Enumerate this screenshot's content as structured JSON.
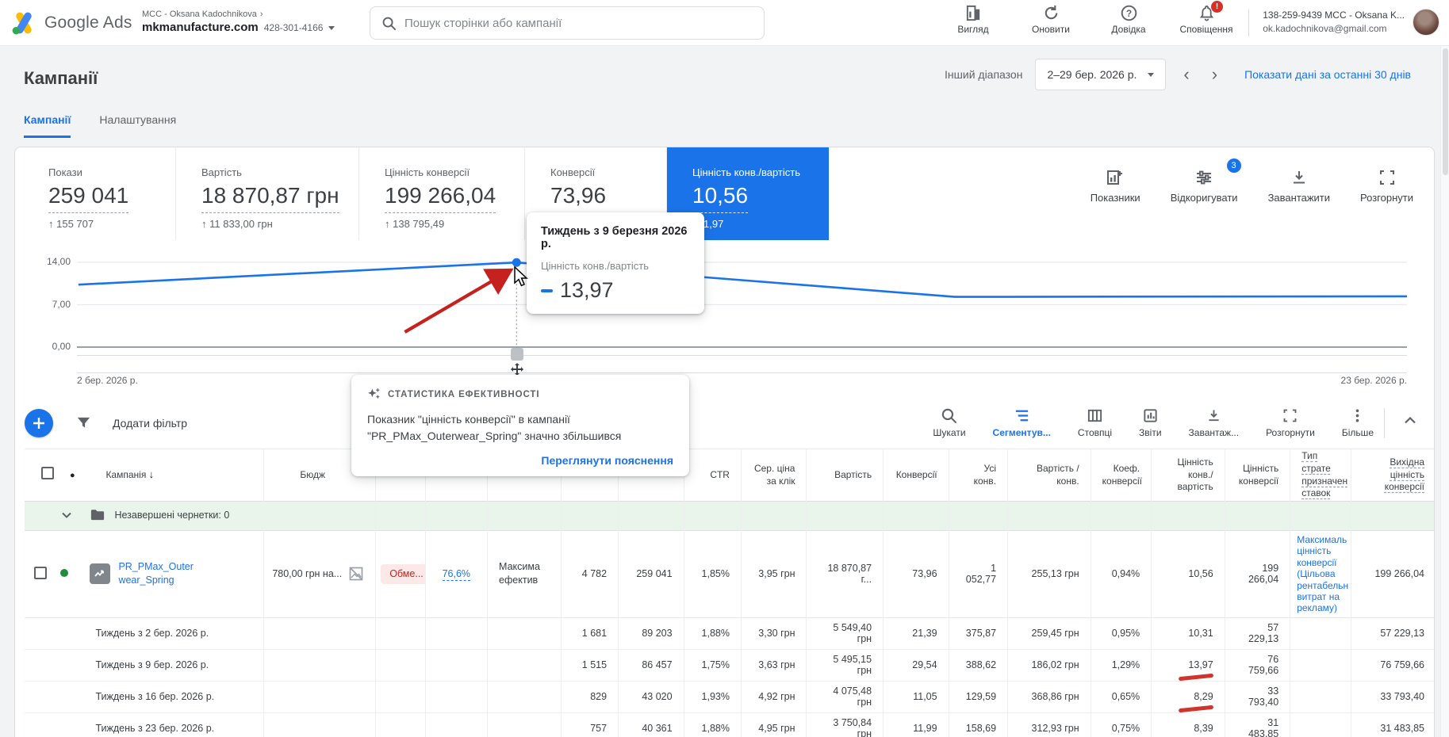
{
  "topbar": {
    "brand": "Google Ads",
    "breadcrumb": {
      "mcc": "MCC - Oksana Kadochnikova",
      "chevron": "›",
      "account": "mkmanufacture.com",
      "account_id": "428-301-4166"
    },
    "search": {
      "placeholder": "Пошук сторінки або кампанії"
    },
    "nav": [
      {
        "label": "Вигляд"
      },
      {
        "label": "Оновити"
      },
      {
        "label": "Довідка"
      },
      {
        "label": "Сповіщення",
        "badge": "!"
      }
    ],
    "account": {
      "line1": "138-259-9439 MCC - Oksana K...",
      "line2": "ok.kadochnikova@gmail.com"
    }
  },
  "header": {
    "title": "Кампанії",
    "range_label": "Інший діапазон",
    "date_range": "2–29 бер. 2026 р.",
    "prev": "‹",
    "next": "›",
    "last30": "Показати дані за останні 30 днів"
  },
  "tabs": [
    {
      "label": "Кампанії"
    },
    {
      "label": "Налаштування"
    }
  ],
  "scorecards": [
    {
      "label": "Покази",
      "value": "259 041",
      "delta": "↑ 155 707"
    },
    {
      "label": "Вартість",
      "value": "18 870,87 грн",
      "delta": "↑ 11 833,00 грн"
    },
    {
      "label": "Цінність конверсії",
      "value": "199 266,04",
      "delta": "↑ 138 795,49"
    },
    {
      "label": "Конверсії",
      "value": "73,96",
      "delta": ""
    },
    {
      "label": "Цінність конв./вартість",
      "value": "10,56",
      "delta": "1,97",
      "selected": true,
      "accent": "#1a73e8"
    }
  ],
  "card_actions": {
    "metrics": "Показники",
    "adjust": "Відкоригувати",
    "adjust_badge": "3",
    "download": "Завантажити",
    "expand": "Розгорнути"
  },
  "chart_data": {
    "type": "line",
    "metric": "Цінність конв./вартість",
    "x": [
      "2 бер. 2026 р.",
      "9 бер. 2026 р.",
      "16 бер. 2026 р.",
      "23 бер. 2026 р."
    ],
    "values": [
      10.31,
      13.97,
      8.29,
      8.39
    ],
    "ylim": [
      0,
      14
    ],
    "yticks": [
      {
        "label": "14,00",
        "value": 14
      },
      {
        "label": "7,00",
        "value": 7
      },
      {
        "label": "0,00",
        "value": 0
      }
    ],
    "x_start_label": "2 бер. 2026 р.",
    "x_end_label": "23 бер. 2026 р.",
    "highlight_index": 1,
    "line_color": "#1a73e8",
    "grid": true,
    "legend": "none"
  },
  "chart_tooltip": {
    "title": "Тиждень з 9 березня 2026 р.",
    "metric": "Цінність конв./вартість",
    "value": "13,97"
  },
  "insights": {
    "header": "СТАТИСТИКА ЕФЕКТИВНОСТІ",
    "body": "Показник \"цінність конверсії\" в кампанії\n\"PR_PMax_Outerwear_Spring\" значно збільшився",
    "link": "Переглянути пояснення"
  },
  "toolbar": {
    "add_filter": "Додати фільтр",
    "actions": [
      {
        "label": "Шукати"
      },
      {
        "label": "Сегментув...",
        "active": true
      },
      {
        "label": "Стовпці"
      },
      {
        "label": "Звіти"
      },
      {
        "label": "Завантаж..."
      },
      {
        "label": "Розгорнути"
      },
      {
        "label": "Більше"
      }
    ]
  },
  "table": {
    "sort_icon": "↓",
    "status_icon": "●",
    "headers": {
      "campaign": "Кампанія",
      "budget": "Бюдж",
      "ctr": "CTR",
      "avg_cpc": "Сер. ціна за клік",
      "cost": "Вартість",
      "conversions": "Конверсії",
      "all_conv": "Усі конв.",
      "cost_per_conv": "Вартість / конв.",
      "conv_rate": "Коеф. конверсії",
      "value_per_cost": "Цінність конв./ вартість",
      "conv_value": "Цінність конверсії",
      "bid_strategy": "Тип страте\nпризначен\nставок",
      "output_conv_value": "Вихідна\nцінність\nконверсії"
    },
    "group_row": {
      "label": "Незавершені чернетки: 0"
    },
    "campaign": {
      "name": "PR_PMax_Outer\nwear_Spring",
      "budget": "780,00 грн на...",
      "status": "Обме...",
      "opt_score": "76,6%",
      "type": "Максима\nефектив",
      "clicks": "4 782",
      "impressions": "259 041",
      "ctr": "1,85%",
      "avg_cpc": "3,95 грн",
      "cost": "18 870,87 г...",
      "conversions": "73,96",
      "all_conv": "1 052,77",
      "cost_per_conv": "255,13 грн",
      "conv_rate": "0,94%",
      "value_per_cost": "10,56",
      "conv_value": "199 266,04",
      "bid_strategy": "Максималь\nцінність\nконверсії\n(Цільова\nрентабельн\nвитрат на\nрекламу)",
      "output_conv_value": "199 266,04"
    },
    "weeks": [
      {
        "label": "Тиждень з 2 бер. 2026 р.",
        "clicks": "1 681",
        "impressions": "89 203",
        "ctr": "1,88%",
        "avg_cpc": "3,30 грн",
        "cost": "5 549,40 грн",
        "conversions": "21,39",
        "all_conv": "375,87",
        "cost_per_conv": "259,45 грн",
        "conv_rate": "0,95%",
        "value_per_cost": "10,31",
        "conv_value": "57 229,13",
        "output_conv_value": "57 229,13"
      },
      {
        "label": "Тиждень з 9 бер. 2026 р.",
        "clicks": "1 515",
        "impressions": "86 457",
        "ctr": "1,75%",
        "avg_cpc": "3,63 грн",
        "cost": "5 495,15 грн",
        "conversions": "29,54",
        "all_conv": "388,62",
        "cost_per_conv": "186,02 грн",
        "conv_rate": "1,29%",
        "value_per_cost": "13,97",
        "conv_value": "76 759,66",
        "output_conv_value": "76 759,66",
        "marked": true
      },
      {
        "label": "Тиждень з 16 бер. 2026 р.",
        "clicks": "829",
        "impressions": "43 020",
        "ctr": "1,93%",
        "avg_cpc": "4,92 грн",
        "cost": "4 075,48 грн",
        "conversions": "11,05",
        "all_conv": "129,59",
        "cost_per_conv": "368,86 грн",
        "conv_rate": "0,65%",
        "value_per_cost": "8,29",
        "conv_value": "33 793,40",
        "output_conv_value": "33 793,40",
        "marked": true
      },
      {
        "label": "Тиждень з 23 бер. 2026 р.",
        "clicks": "757",
        "impressions": "40 361",
        "ctr": "1,88%",
        "avg_cpc": "4,95 грн",
        "cost": "3 750,84 грн",
        "conversions": "11,99",
        "all_conv": "158,69",
        "cost_per_conv": "312,93 грн",
        "conv_rate": "0,75%",
        "value_per_cost": "8,39",
        "conv_value": "31 483,85",
        "output_conv_value": "31 483,85",
        "marked": true
      }
    ]
  }
}
